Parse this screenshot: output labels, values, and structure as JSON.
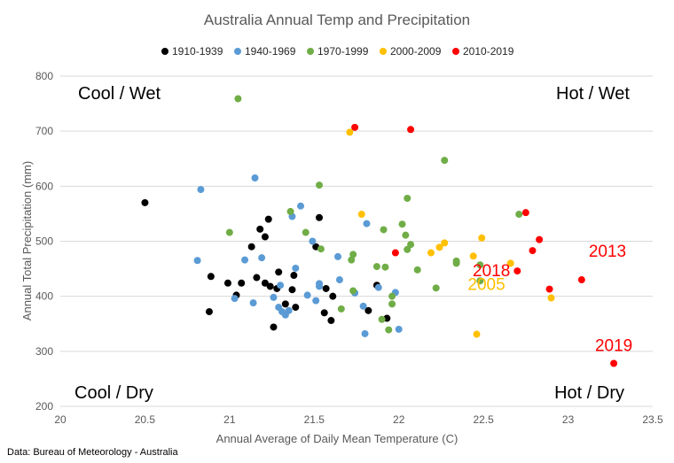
{
  "chart_data": {
    "type": "scatter",
    "title": "Australia Annual Temp and Precipitation",
    "xlabel": "Annual Average of Daily Mean Temperature (C)",
    "ylabel": "Annual Total Precipitation (mm)",
    "xlim": [
      20,
      23.5
    ],
    "ylim": [
      200,
      800
    ],
    "xticks": [
      "20",
      "20.5",
      "21",
      "21.5",
      "22",
      "22.5",
      "23",
      "23.5"
    ],
    "yticks": [
      "200",
      "300",
      "400",
      "500",
      "600",
      "700",
      "800"
    ],
    "grid": "horizontal",
    "legend_position": "top",
    "series": [
      {
        "name": "1910-1939",
        "color": "#000000",
        "points": [
          {
            "x": 20.5,
            "y": 570
          },
          {
            "x": 20.88,
            "y": 372
          },
          {
            "x": 20.89,
            "y": 436
          },
          {
            "x": 20.99,
            "y": 424
          },
          {
            "x": 21.04,
            "y": 402
          },
          {
            "x": 21.07,
            "y": 424
          },
          {
            "x": 21.13,
            "y": 490
          },
          {
            "x": 21.16,
            "y": 434
          },
          {
            "x": 21.18,
            "y": 522
          },
          {
            "x": 21.21,
            "y": 508
          },
          {
            "x": 21.21,
            "y": 424
          },
          {
            "x": 21.23,
            "y": 540
          },
          {
            "x": 21.24,
            "y": 418
          },
          {
            "x": 21.26,
            "y": 344
          },
          {
            "x": 21.28,
            "y": 414
          },
          {
            "x": 21.29,
            "y": 444
          },
          {
            "x": 21.33,
            "y": 386
          },
          {
            "x": 21.37,
            "y": 412
          },
          {
            "x": 21.38,
            "y": 438
          },
          {
            "x": 21.39,
            "y": 380
          },
          {
            "x": 21.51,
            "y": 490
          },
          {
            "x": 21.53,
            "y": 543
          },
          {
            "x": 21.56,
            "y": 370
          },
          {
            "x": 21.57,
            "y": 414
          },
          {
            "x": 21.6,
            "y": 356
          },
          {
            "x": 21.61,
            "y": 400
          },
          {
            "x": 21.82,
            "y": 374
          },
          {
            "x": 21.87,
            "y": 420
          },
          {
            "x": 21.93,
            "y": 360
          }
        ]
      },
      {
        "name": "1940-1969",
        "color": "#5b9bd5",
        "points": [
          {
            "x": 20.81,
            "y": 465
          },
          {
            "x": 20.83,
            "y": 594
          },
          {
            "x": 21.03,
            "y": 396
          },
          {
            "x": 21.09,
            "y": 466
          },
          {
            "x": 21.14,
            "y": 388
          },
          {
            "x": 21.15,
            "y": 615
          },
          {
            "x": 21.19,
            "y": 470
          },
          {
            "x": 21.26,
            "y": 398
          },
          {
            "x": 21.29,
            "y": 380
          },
          {
            "x": 21.3,
            "y": 420
          },
          {
            "x": 21.31,
            "y": 372
          },
          {
            "x": 21.33,
            "y": 366
          },
          {
            "x": 21.35,
            "y": 374
          },
          {
            "x": 21.37,
            "y": 545
          },
          {
            "x": 21.39,
            "y": 451
          },
          {
            "x": 21.42,
            "y": 564
          },
          {
            "x": 21.46,
            "y": 402
          },
          {
            "x": 21.49,
            "y": 500
          },
          {
            "x": 21.51,
            "y": 392
          },
          {
            "x": 21.53,
            "y": 423
          },
          {
            "x": 21.53,
            "y": 418
          },
          {
            "x": 21.64,
            "y": 472
          },
          {
            "x": 21.65,
            "y": 430
          },
          {
            "x": 21.74,
            "y": 406
          },
          {
            "x": 21.79,
            "y": 382
          },
          {
            "x": 21.8,
            "y": 332
          },
          {
            "x": 21.81,
            "y": 532
          },
          {
            "x": 21.88,
            "y": 416
          },
          {
            "x": 21.98,
            "y": 407
          },
          {
            "x": 22.0,
            "y": 340
          }
        ]
      },
      {
        "name": "1970-1999",
        "color": "#70ad47",
        "points": [
          {
            "x": 21.0,
            "y": 516
          },
          {
            "x": 21.05,
            "y": 759
          },
          {
            "x": 21.36,
            "y": 554
          },
          {
            "x": 21.45,
            "y": 516
          },
          {
            "x": 21.53,
            "y": 602
          },
          {
            "x": 21.54,
            "y": 486
          },
          {
            "x": 21.66,
            "y": 377
          },
          {
            "x": 21.72,
            "y": 466
          },
          {
            "x": 21.73,
            "y": 476
          },
          {
            "x": 21.73,
            "y": 410
          },
          {
            "x": 21.87,
            "y": 454
          },
          {
            "x": 21.9,
            "y": 358
          },
          {
            "x": 21.91,
            "y": 521
          },
          {
            "x": 21.92,
            "y": 453
          },
          {
            "x": 21.94,
            "y": 339
          },
          {
            "x": 21.96,
            "y": 386
          },
          {
            "x": 21.96,
            "y": 400
          },
          {
            "x": 22.02,
            "y": 531
          },
          {
            "x": 22.04,
            "y": 511
          },
          {
            "x": 22.05,
            "y": 578
          },
          {
            "x": 22.05,
            "y": 485
          },
          {
            "x": 22.07,
            "y": 494
          },
          {
            "x": 22.11,
            "y": 448
          },
          {
            "x": 22.22,
            "y": 415
          },
          {
            "x": 22.27,
            "y": 647
          },
          {
            "x": 22.34,
            "y": 464
          },
          {
            "x": 22.34,
            "y": 460
          },
          {
            "x": 22.48,
            "y": 457
          },
          {
            "x": 22.48,
            "y": 428
          },
          {
            "x": 22.71,
            "y": 549
          }
        ]
      },
      {
        "name": "2000-2009",
        "color": "#ffc000",
        "points": [
          {
            "x": 21.71,
            "y": 698
          },
          {
            "x": 21.78,
            "y": 549
          },
          {
            "x": 22.19,
            "y": 479
          },
          {
            "x": 22.24,
            "y": 489
          },
          {
            "x": 22.27,
            "y": 497
          },
          {
            "x": 22.44,
            "y": 473
          },
          {
            "x": 22.46,
            "y": 331
          },
          {
            "x": 22.49,
            "y": 506
          },
          {
            "x": 22.66,
            "y": 460
          },
          {
            "x": 22.9,
            "y": 397
          }
        ]
      },
      {
        "name": "2010-2019",
        "color": "#ff0000",
        "points": [
          {
            "x": 21.74,
            "y": 707
          },
          {
            "x": 21.98,
            "y": 479
          },
          {
            "x": 22.07,
            "y": 703
          },
          {
            "x": 22.7,
            "y": 446
          },
          {
            "x": 22.75,
            "y": 552
          },
          {
            "x": 22.79,
            "y": 483
          },
          {
            "x": 22.83,
            "y": 503
          },
          {
            "x": 22.89,
            "y": 413
          },
          {
            "x": 23.08,
            "y": 430
          },
          {
            "x": 23.27,
            "y": 278
          }
        ]
      }
    ],
    "annotations": [
      {
        "text": "Cool / Wet",
        "corner": "top-left"
      },
      {
        "text": "Hot / Wet",
        "corner": "top-right"
      },
      {
        "text": "Cool / Dry",
        "corner": "bottom-left"
      },
      {
        "text": "Hot / Dry",
        "corner": "bottom-right"
      }
    ],
    "point_labels": [
      {
        "text": "2013",
        "x": 23.08,
        "y": 430,
        "color": "#ff0000"
      },
      {
        "text": "2018",
        "x": 22.7,
        "y": 446,
        "color": "#ff0000"
      },
      {
        "text": "2005",
        "x": 22.66,
        "y": 460,
        "color": "#ffc000"
      },
      {
        "text": "2019",
        "x": 23.27,
        "y": 278,
        "color": "#ff0000"
      }
    ]
  },
  "source": "Data:  Bureau of Meteorology - Australia"
}
